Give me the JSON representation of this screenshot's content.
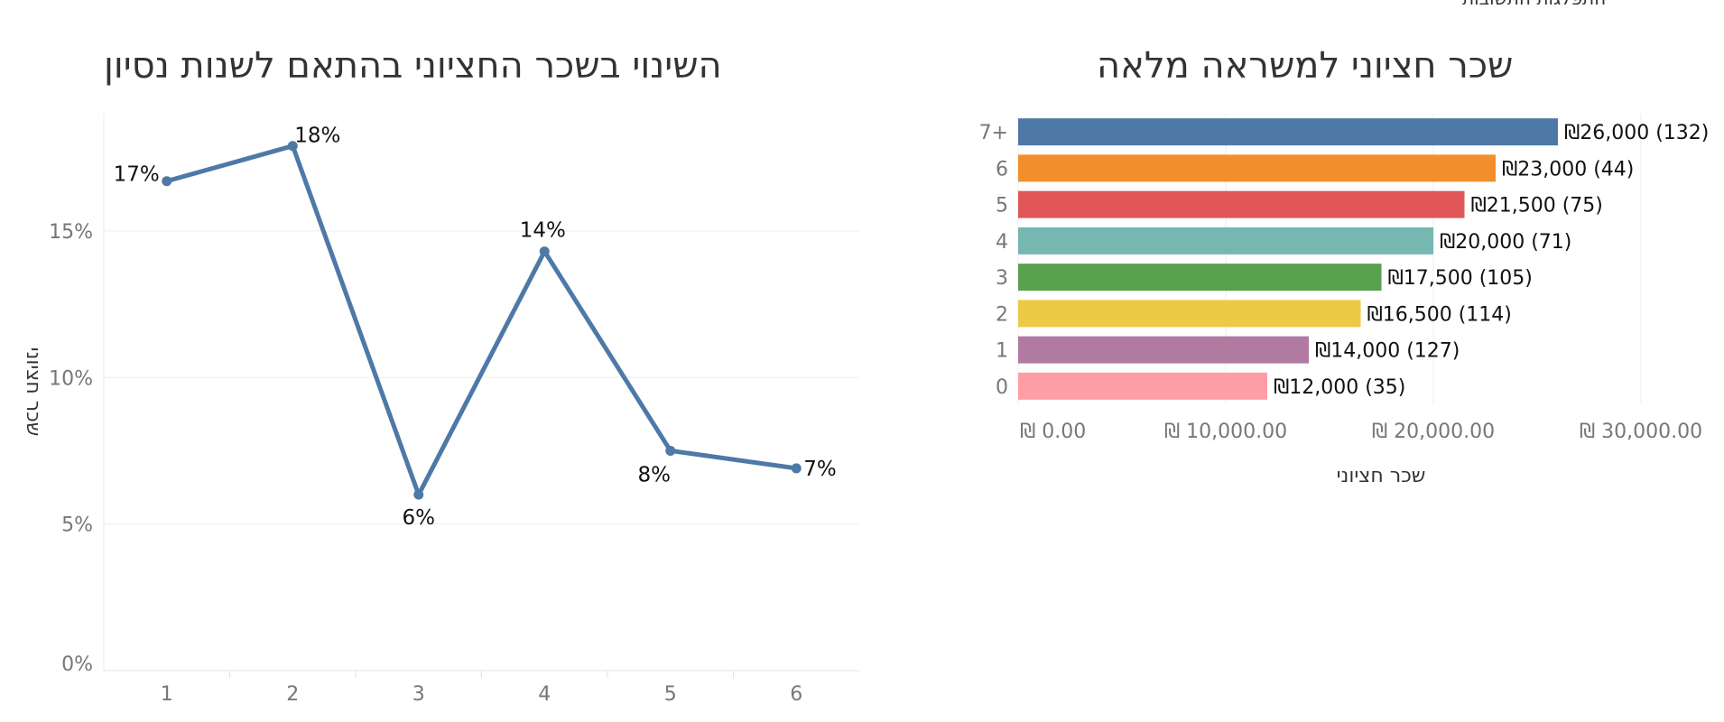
{
  "page": {
    "top_fragment": "התפלגות התשובות"
  },
  "chart_data": [
    {
      "type": "line",
      "title": "השינוי  בשכר החציוני בהתאם לשנות נסיון",
      "ylabel": "שכר חציוני",
      "xlabel": "",
      "x": [
        "1",
        "2",
        "3",
        "4",
        "5",
        "6"
      ],
      "values": [
        16.7,
        17.9,
        6.0,
        14.3,
        7.5,
        6.9
      ],
      "data_labels": [
        "17%",
        "18%",
        "6%",
        "14%",
        "8%",
        "7%"
      ],
      "ylim": [
        0,
        19
      ],
      "yticks": [
        0,
        5,
        10,
        15
      ],
      "ytick_labels": [
        "0%",
        "5%",
        "10%",
        "15%"
      ],
      "grid": true,
      "color": "#4e79a7"
    },
    {
      "type": "bar",
      "orientation": "horizontal",
      "title": "שכר חציוני למשראה מלאה",
      "xlabel": "שכר חציוני",
      "ylabel": "",
      "categories": [
        "7+",
        "6",
        "5",
        "4",
        "3",
        "2",
        "1",
        "0"
      ],
      "values": [
        26000,
        23000,
        21500,
        20000,
        17500,
        16500,
        14000,
        12000
      ],
      "counts": [
        132,
        44,
        75,
        71,
        105,
        114,
        127,
        35
      ],
      "data_labels": [
        "₪26,000 (132)",
        "₪23,000 (44)",
        "₪21,500 (75)",
        "₪20,000 (71)",
        "₪17,500 (105)",
        "₪16,500 (114)",
        "₪14,000 (127)",
        "₪12,000 (35)"
      ],
      "colors": [
        "#4e79a7",
        "#f28e2b",
        "#e15759",
        "#76b7b2",
        "#59a14f",
        "#edc948",
        "#b07aa1",
        "#ff9da7"
      ],
      "xlim": [
        0,
        34000
      ],
      "xticks": [
        0,
        10000,
        20000,
        30000
      ],
      "xtick_labels": [
        "₪ 0.00",
        "₪ 10,000.00",
        "₪ 20,000.00",
        "₪ 30,000.00"
      ],
      "grid": true
    }
  ]
}
